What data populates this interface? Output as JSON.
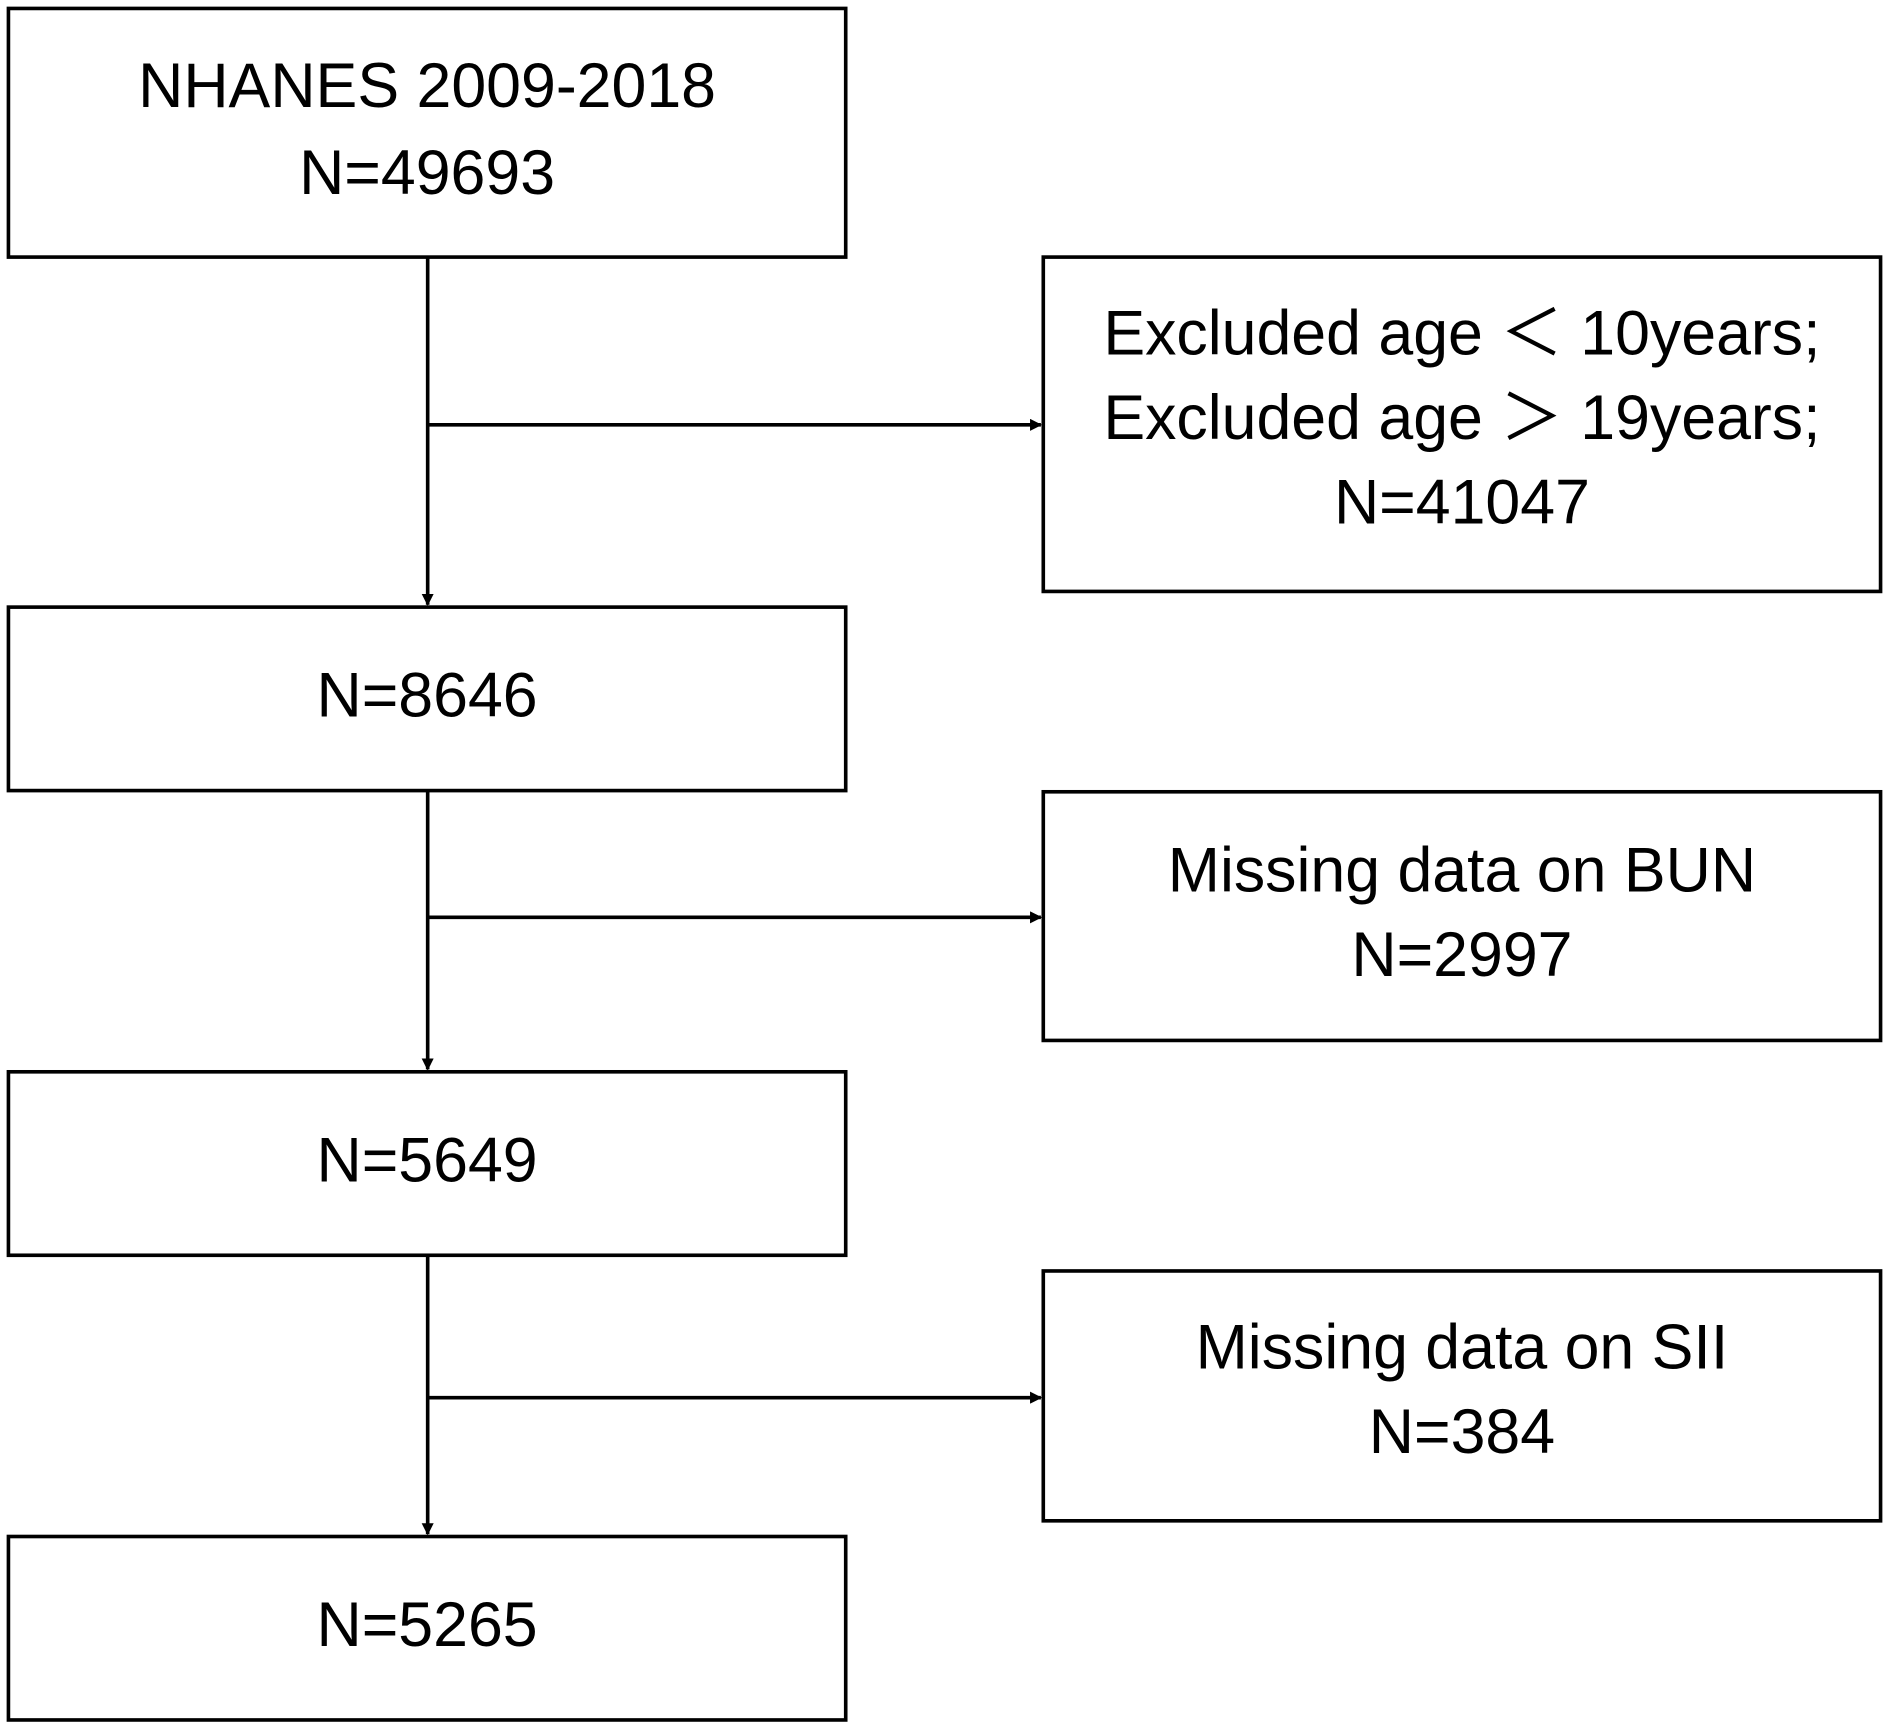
{
  "nodes": [
    {
      "lines": [
        "NHANES 2009-2018",
        "N=49693"
      ]
    },
    {
      "lines": [
        "Excluded age ＜ 10years;",
        "Excluded age ＞ 19years;",
        "N=41047"
      ]
    },
    {
      "lines": [
        "N=8646"
      ]
    },
    {
      "lines": [
        "Missing data on BUN",
        "N=2997"
      ]
    },
    {
      "lines": [
        "N=5649"
      ]
    },
    {
      "lines": [
        "Missing data on SII",
        "N=384"
      ]
    },
    {
      "lines": [
        "N=5265"
      ]
    }
  ]
}
